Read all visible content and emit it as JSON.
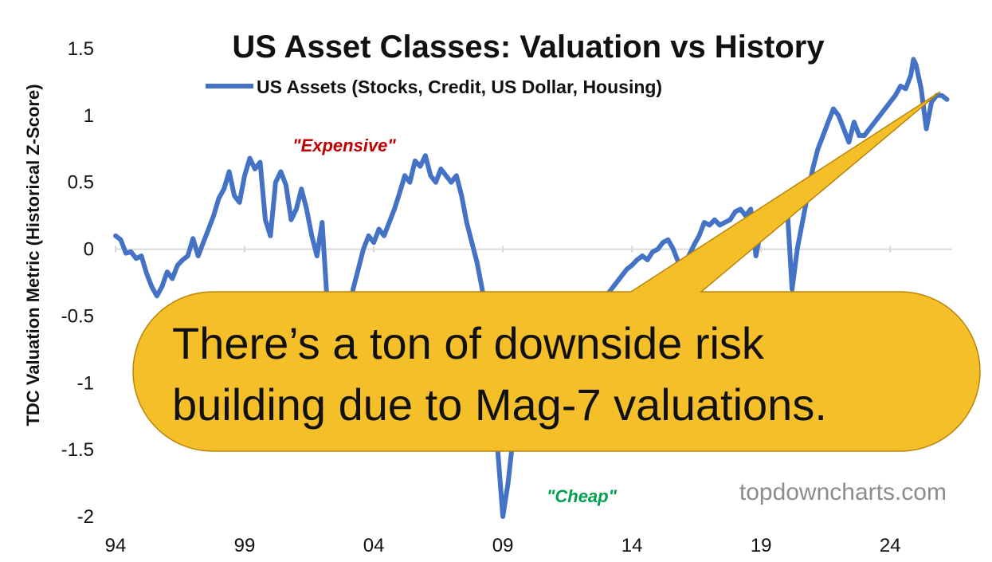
{
  "chart_data": {
    "type": "line",
    "title": "US Asset Classes: Valuation vs History",
    "ylabel": "TDC Valuation Metric (Historical Z-Score)",
    "xlabel": "",
    "ylim": [
      -2,
      1.5
    ],
    "xlim": [
      1994,
      2026.4
    ],
    "x_ticks": [
      1994,
      1999,
      2004,
      2009,
      2014,
      2019,
      2024
    ],
    "x_tick_labels": [
      "94",
      "99",
      "04",
      "09",
      "14",
      "19",
      "24"
    ],
    "y_ticks": [
      1.5,
      1,
      0.5,
      0,
      -0.5,
      -1,
      -1.5,
      -2
    ],
    "y_tick_labels": [
      "1.5",
      "1",
      "0.5",
      "0",
      "-0.5",
      "-1",
      "-1.5",
      "-2"
    ],
    "grid": false,
    "legend_position": "top",
    "series": [
      {
        "name": "US Assets (Stocks, Credit, US Dollar, Housing)",
        "color": "#4472c4",
        "points": [
          [
            1994.0,
            0.1
          ],
          [
            1994.2,
            0.07
          ],
          [
            1994.4,
            -0.03
          ],
          [
            1994.6,
            -0.02
          ],
          [
            1994.8,
            -0.07
          ],
          [
            1995.0,
            -0.05
          ],
          [
            1995.2,
            -0.18
          ],
          [
            1995.4,
            -0.28
          ],
          [
            1995.6,
            -0.35
          ],
          [
            1995.8,
            -0.28
          ],
          [
            1996.0,
            -0.17
          ],
          [
            1996.2,
            -0.22
          ],
          [
            1996.4,
            -0.12
          ],
          [
            1996.6,
            -0.08
          ],
          [
            1996.8,
            -0.05
          ],
          [
            1997.0,
            0.08
          ],
          [
            1997.2,
            -0.05
          ],
          [
            1997.4,
            0.05
          ],
          [
            1997.6,
            0.15
          ],
          [
            1997.8,
            0.25
          ],
          [
            1998.0,
            0.38
          ],
          [
            1998.2,
            0.45
          ],
          [
            1998.4,
            0.58
          ],
          [
            1998.6,
            0.4
          ],
          [
            1998.8,
            0.35
          ],
          [
            1999.0,
            0.55
          ],
          [
            1999.2,
            0.68
          ],
          [
            1999.4,
            0.6
          ],
          [
            1999.6,
            0.65
          ],
          [
            1999.8,
            0.22
          ],
          [
            2000.0,
            0.1
          ],
          [
            2000.2,
            0.5
          ],
          [
            2000.4,
            0.58
          ],
          [
            2000.6,
            0.48
          ],
          [
            2000.8,
            0.22
          ],
          [
            2001.0,
            0.3
          ],
          [
            2001.2,
            0.45
          ],
          [
            2001.4,
            0.3
          ],
          [
            2001.6,
            0.1
          ],
          [
            2001.8,
            -0.05
          ],
          [
            2002.0,
            0.2
          ],
          [
            2002.2,
            -0.4
          ],
          [
            2002.4,
            -0.6
          ],
          [
            2002.6,
            -0.85
          ],
          [
            2002.8,
            -0.6
          ],
          [
            2003.0,
            -0.5
          ],
          [
            2003.2,
            -0.3
          ],
          [
            2003.4,
            -0.15
          ],
          [
            2003.6,
            0.0
          ],
          [
            2003.8,
            0.1
          ],
          [
            2004.0,
            0.05
          ],
          [
            2004.2,
            0.15
          ],
          [
            2004.4,
            0.1
          ],
          [
            2004.6,
            0.2
          ],
          [
            2004.8,
            0.3
          ],
          [
            2005.0,
            0.42
          ],
          [
            2005.2,
            0.55
          ],
          [
            2005.4,
            0.5
          ],
          [
            2005.6,
            0.66
          ],
          [
            2005.8,
            0.62
          ],
          [
            2006.0,
            0.7
          ],
          [
            2006.2,
            0.55
          ],
          [
            2006.4,
            0.5
          ],
          [
            2006.6,
            0.6
          ],
          [
            2006.8,
            0.55
          ],
          [
            2007.0,
            0.5
          ],
          [
            2007.2,
            0.55
          ],
          [
            2007.4,
            0.4
          ],
          [
            2007.6,
            0.2
          ],
          [
            2007.8,
            0.05
          ],
          [
            2008.0,
            -0.1
          ],
          [
            2008.2,
            -0.3
          ],
          [
            2008.4,
            -0.6
          ],
          [
            2008.6,
            -1.0
          ],
          [
            2008.8,
            -1.5
          ],
          [
            2009.0,
            -2.0
          ],
          [
            2009.2,
            -1.75
          ],
          [
            2009.4,
            -1.4
          ],
          [
            2009.6,
            -1.05
          ],
          [
            2009.8,
            -0.9
          ],
          [
            2010.0,
            -0.75
          ],
          [
            2010.2,
            -0.85
          ],
          [
            2010.4,
            -0.7
          ],
          [
            2010.6,
            -0.65
          ],
          [
            2010.8,
            -0.6
          ],
          [
            2011.0,
            -0.55
          ],
          [
            2011.2,
            -0.65
          ],
          [
            2011.4,
            -0.6
          ],
          [
            2011.6,
            -0.7
          ],
          [
            2011.8,
            -0.6
          ],
          [
            2012.0,
            -0.5
          ],
          [
            2012.2,
            -0.55
          ],
          [
            2012.4,
            -0.45
          ],
          [
            2012.6,
            -0.4
          ],
          [
            2012.8,
            -0.38
          ],
          [
            2013.0,
            -0.35
          ],
          [
            2013.2,
            -0.3
          ],
          [
            2013.4,
            -0.25
          ],
          [
            2013.6,
            -0.2
          ],
          [
            2013.8,
            -0.15
          ],
          [
            2014.0,
            -0.12
          ],
          [
            2014.2,
            -0.08
          ],
          [
            2014.4,
            -0.05
          ],
          [
            2014.6,
            -0.08
          ],
          [
            2014.8,
            -0.02
          ],
          [
            2015.0,
            0.0
          ],
          [
            2015.2,
            0.05
          ],
          [
            2015.4,
            0.07
          ],
          [
            2015.6,
            0.0
          ],
          [
            2015.8,
            -0.1
          ],
          [
            2016.0,
            -0.15
          ],
          [
            2016.2,
            -0.05
          ],
          [
            2016.4,
            0.03
          ],
          [
            2016.6,
            0.1
          ],
          [
            2016.8,
            0.2
          ],
          [
            2017.0,
            0.18
          ],
          [
            2017.2,
            0.22
          ],
          [
            2017.4,
            0.18
          ],
          [
            2017.6,
            0.2
          ],
          [
            2017.8,
            0.22
          ],
          [
            2018.0,
            0.28
          ],
          [
            2018.2,
            0.3
          ],
          [
            2018.4,
            0.25
          ],
          [
            2018.6,
            0.3
          ],
          [
            2018.8,
            -0.05
          ],
          [
            2019.0,
            0.15
          ],
          [
            2019.2,
            0.25
          ],
          [
            2019.4,
            0.3
          ],
          [
            2019.6,
            0.28
          ],
          [
            2019.8,
            0.3
          ],
          [
            2020.0,
            0.35
          ],
          [
            2020.2,
            -0.3
          ],
          [
            2020.4,
            0.0
          ],
          [
            2020.6,
            0.2
          ],
          [
            2020.8,
            0.4
          ],
          [
            2021.0,
            0.6
          ],
          [
            2021.2,
            0.75
          ],
          [
            2021.4,
            0.85
          ],
          [
            2021.6,
            0.95
          ],
          [
            2021.8,
            1.05
          ],
          [
            2022.0,
            1.0
          ],
          [
            2022.2,
            0.9
          ],
          [
            2022.4,
            0.8
          ],
          [
            2022.6,
            0.95
          ],
          [
            2022.8,
            0.85
          ],
          [
            2023.0,
            0.85
          ],
          [
            2023.2,
            0.9
          ],
          [
            2023.4,
            0.95
          ],
          [
            2023.6,
            1.0
          ],
          [
            2023.8,
            1.05
          ],
          [
            2024.0,
            1.1
          ],
          [
            2024.2,
            1.15
          ],
          [
            2024.4,
            1.22
          ],
          [
            2024.6,
            1.2
          ],
          [
            2024.8,
            1.3
          ],
          [
            2024.9,
            1.42
          ],
          [
            2025.0,
            1.38
          ],
          [
            2025.2,
            1.2
          ],
          [
            2025.4,
            0.9
          ],
          [
            2025.6,
            1.1
          ],
          [
            2025.8,
            1.15
          ],
          [
            2026.0,
            1.15
          ],
          [
            2026.2,
            1.12
          ]
        ]
      }
    ],
    "annotations": [
      {
        "text": "\"Expensive\"",
        "color": "#c00000"
      },
      {
        "text": "\"Cheap\"",
        "color": "#00a050"
      }
    ]
  },
  "callout": {
    "lines": [
      "There’s a ton of downside risk",
      "building due to Mag-7 valuations."
    ],
    "fill": "#f5bf2a"
  },
  "source_text": "topdowncharts.com"
}
